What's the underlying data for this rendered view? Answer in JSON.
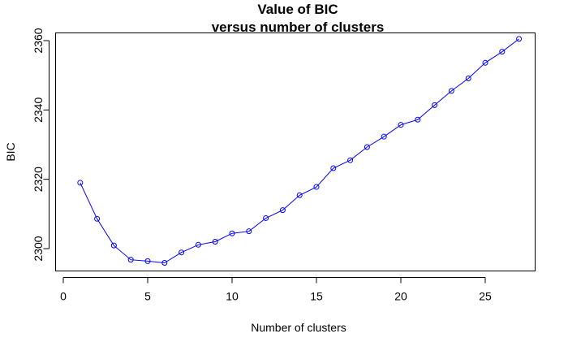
{
  "chart_data": {
    "type": "line",
    "title": "Value of BIC",
    "subtitle": "versus number of clusters",
    "xlabel": "Number of clusters",
    "ylabel": "BIC",
    "xlim": [
      0,
      28
    ],
    "ylim": [
      2293,
      2362
    ],
    "xticks": [
      0,
      5,
      10,
      15,
      20,
      25
    ],
    "yticks": [
      2300,
      2320,
      2340,
      2360
    ],
    "grid": false,
    "series": [
      {
        "color": "#0000ff",
        "marker": "open-circle",
        "x": [
          1,
          2,
          3,
          4,
          5,
          6,
          7,
          8,
          9,
          10,
          11,
          12,
          13,
          14,
          15,
          16,
          17,
          18,
          19,
          20,
          21,
          22,
          23,
          24,
          25,
          26,
          27
        ],
        "y": [
          2319.0,
          2308.6,
          2300.9,
          2296.8,
          2296.4,
          2295.9,
          2298.9,
          2301.1,
          2302.0,
          2304.4,
          2305.0,
          2308.8,
          2311.1,
          2315.4,
          2317.8,
          2323.2,
          2325.5,
          2329.3,
          2332.3,
          2335.7,
          2337.2,
          2341.4,
          2345.5,
          2349.1,
          2353.6,
          2356.8,
          2360.5
        ]
      }
    ]
  }
}
